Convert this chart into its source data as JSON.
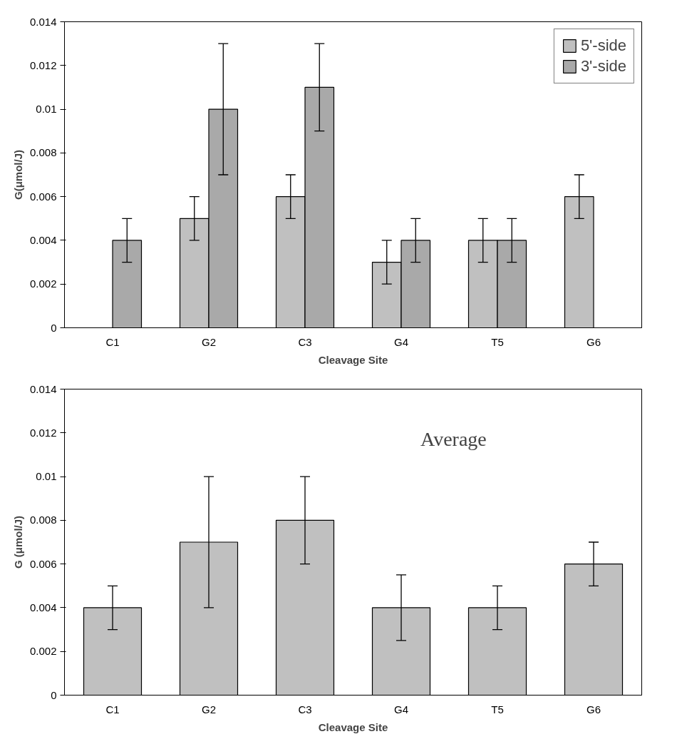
{
  "chart_data": [
    {
      "type": "bar",
      "xlabel": "Cleavage Site",
      "ylabel": "G(μmol/J)",
      "categories": [
        "C1",
        "G2",
        "C3",
        "G4",
        "T5",
        "G6"
      ],
      "ylim": [
        0,
        0.014
      ],
      "yticks": [
        0,
        0.002,
        0.004,
        0.006,
        0.008,
        0.01,
        0.012,
        0.014
      ],
      "grid": false,
      "legend": "top right",
      "series": [
        {
          "name": "5'-side",
          "color": "#c0c0c0",
          "values": [
            null,
            0.005,
            0.006,
            0.003,
            0.004,
            0.006
          ],
          "errors": [
            null,
            0.001,
            0.001,
            0.001,
            0.001,
            0.001
          ]
        },
        {
          "name": "3'-side",
          "color": "#a9a9a9",
          "values": [
            0.004,
            0.01,
            0.011,
            0.004,
            0.004,
            null
          ],
          "errors": [
            0.001,
            0.003,
            0.002,
            0.001,
            0.001,
            null
          ]
        }
      ]
    },
    {
      "type": "bar",
      "xlabel": "Cleavage Site",
      "ylabel": "G (μmol/J)",
      "categories": [
        "C1",
        "G2",
        "C3",
        "G4",
        "T5",
        "G6"
      ],
      "ylim": [
        0,
        0.014
      ],
      "yticks": [
        0,
        0.002,
        0.004,
        0.006,
        0.008,
        0.01,
        0.012,
        0.014
      ],
      "grid": false,
      "annotations": [
        "Average"
      ],
      "series": [
        {
          "color": "#c0c0c0",
          "values": [
            0.004,
            0.007,
            0.008,
            0.004,
            0.004,
            0.006
          ],
          "errors": [
            0.001,
            0.003,
            0.002,
            0.0015,
            0.001,
            0.001
          ]
        }
      ]
    }
  ]
}
